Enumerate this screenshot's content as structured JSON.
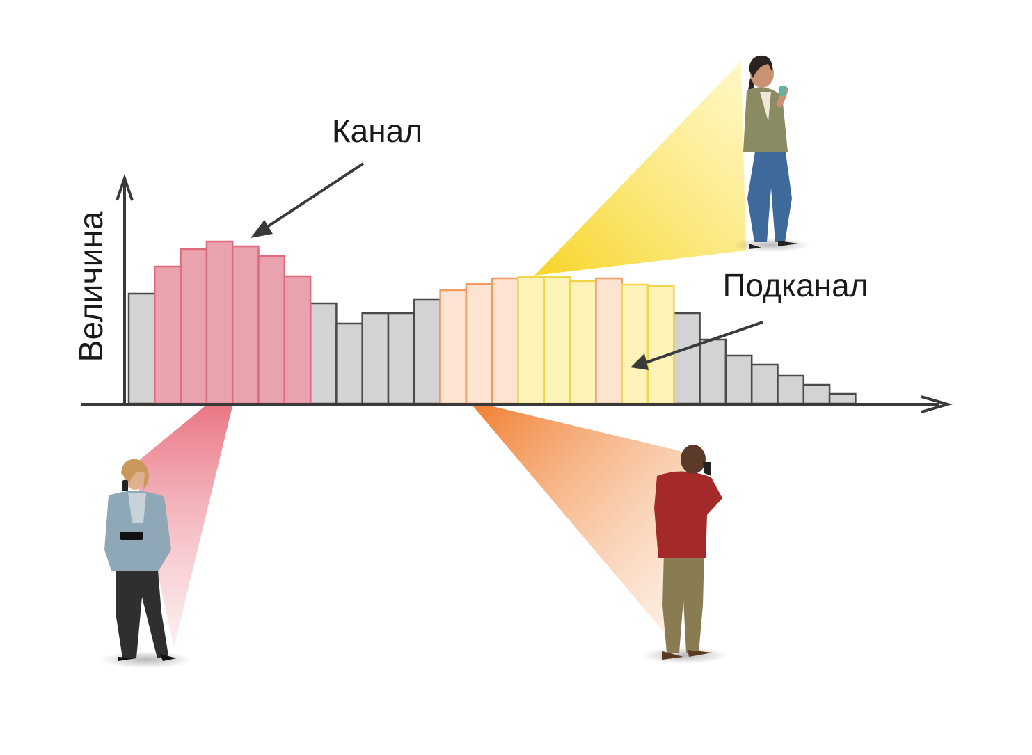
{
  "labels": {
    "y_axis": "Величина",
    "channel": "Канал",
    "subchannel": "Подканал"
  },
  "colors": {
    "gray_fill": "#d3d3d5",
    "gray_stroke": "#4a4a4a",
    "red_fill": "#e9a3ae",
    "red_stroke": "#e06a7c",
    "peach_fill": "#fde3d2",
    "peach_stroke": "#f29a62",
    "yellow_fill": "#fef3b8",
    "yellow_stroke": "#f2d54a",
    "axis": "#3a3a3a"
  },
  "chart_data": {
    "type": "bar",
    "title": "",
    "xlabel": "",
    "ylabel": "Величина",
    "bars": [
      {
        "value": 158,
        "group": "gray"
      },
      {
        "value": 197,
        "group": "red"
      },
      {
        "value": 222,
        "group": "red"
      },
      {
        "value": 233,
        "group": "red"
      },
      {
        "value": 226,
        "group": "red"
      },
      {
        "value": 212,
        "group": "red"
      },
      {
        "value": 183,
        "group": "red"
      },
      {
        "value": 144,
        "group": "gray"
      },
      {
        "value": 115,
        "group": "gray"
      },
      {
        "value": 130,
        "group": "gray"
      },
      {
        "value": 130,
        "group": "gray"
      },
      {
        "value": 150,
        "group": "gray"
      },
      {
        "value": 163,
        "group": "peach"
      },
      {
        "value": 172,
        "group": "peach"
      },
      {
        "value": 180,
        "group": "peach"
      },
      {
        "value": 182,
        "group": "yellow"
      },
      {
        "value": 182,
        "group": "yellow"
      },
      {
        "value": 176,
        "group": "yellow"
      },
      {
        "value": 180,
        "group": "peach"
      },
      {
        "value": 171,
        "group": "yellow"
      },
      {
        "value": 169,
        "group": "yellow"
      },
      {
        "value": 130,
        "group": "gray"
      },
      {
        "value": 92,
        "group": "gray"
      },
      {
        "value": 69,
        "group": "gray"
      },
      {
        "value": 56,
        "group": "gray"
      },
      {
        "value": 40,
        "group": "gray"
      },
      {
        "value": 27,
        "group": "gray"
      },
      {
        "value": 14,
        "group": "gray"
      }
    ],
    "grid": false,
    "legend": "none"
  },
  "people": [
    {
      "icon": "woman-texting-icon"
    },
    {
      "icon": "woman-calling-icon"
    },
    {
      "icon": "man-calling-icon"
    }
  ]
}
